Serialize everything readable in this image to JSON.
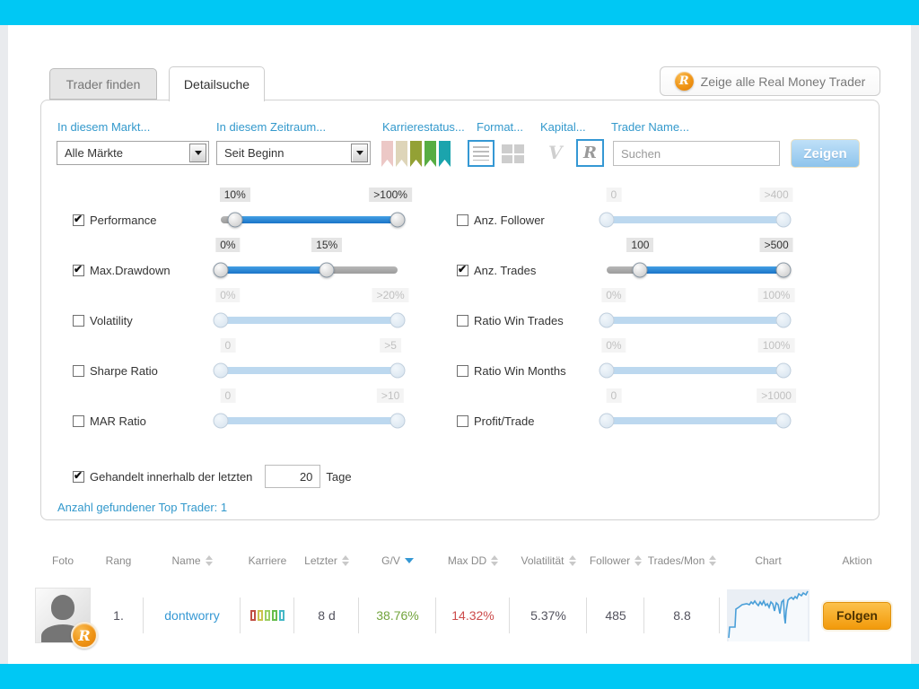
{
  "page": {
    "top_bar_color": "#00c8f4",
    "bottom_bar_color": "#00c8f4"
  },
  "tabs": {
    "trader_finden": "Trader finden",
    "detailsuche": "Detailsuche"
  },
  "show_all_button": {
    "label": "Zeige alle Real Money Trader",
    "badge_letter": "R"
  },
  "filterbar": {
    "market": {
      "label": "In diesem Markt...",
      "value": "Alle Märkte"
    },
    "period": {
      "label": "In diesem Zeitraum...",
      "value": "Seit Beginn"
    },
    "career": {
      "label": "Karrierestatus...",
      "ribbon_colors": [
        "#ecc8c6",
        "#ded5b9",
        "#93a135",
        "#57ad43",
        "#1ba4ad"
      ]
    },
    "format": {
      "label": "Format...",
      "selected": "list"
    },
    "capital": {
      "label": "Kapital...",
      "virtual_letter": "V",
      "real_letter": "R",
      "selected": "R"
    },
    "trader_name": {
      "label": "Trader Name...",
      "placeholder": "Suchen"
    },
    "submit_label": "Zeigen"
  },
  "sliders": {
    "left": [
      {
        "label": "Performance",
        "checked": true,
        "min_label": "10%",
        "max_label": ">100%",
        "low": 8,
        "high": 100
      },
      {
        "label": "Max.Drawdown",
        "checked": true,
        "min_label": "0%",
        "max_label": "15%",
        "low": 0,
        "high": 60
      },
      {
        "label": "Volatility",
        "checked": false,
        "min_label": "0%",
        "max_label": ">20%",
        "low": 0,
        "high": 100
      },
      {
        "label": "Sharpe Ratio",
        "checked": false,
        "min_label": "0",
        "max_label": ">5",
        "low": 0,
        "high": 100
      },
      {
        "label": "MAR Ratio",
        "checked": false,
        "min_label": "0",
        "max_label": ">10",
        "low": 0,
        "high": 100
      }
    ],
    "right": [
      {
        "label": "Anz. Follower",
        "checked": false,
        "min_label": "0",
        "max_label": ">400",
        "low": 0,
        "high": 100
      },
      {
        "label": "Anz. Trades",
        "checked": true,
        "min_label": "100",
        "max_label": ">500",
        "low": 19,
        "high": 100
      },
      {
        "label": "Ratio Win Trades",
        "checked": false,
        "min_label": "0%",
        "max_label": "100%",
        "low": 0,
        "high": 100
      },
      {
        "label": "Ratio Win Months",
        "checked": false,
        "min_label": "0%",
        "max_label": "100%",
        "low": 0,
        "high": 100
      },
      {
        "label": "Profit/Trade",
        "checked": false,
        "min_label": "0",
        "max_label": ">1000",
        "low": 0,
        "high": 100
      }
    ]
  },
  "traded_within": {
    "checked": true,
    "label_before": "Gehandelt innerhalb der letzten",
    "value": "20",
    "label_after": "Tage"
  },
  "result_count": "Anzahl gefundener Top Trader: 1",
  "table": {
    "headers": [
      {
        "label": "Foto",
        "sort": "none"
      },
      {
        "label": "Rang",
        "sort": "none"
      },
      {
        "label": "Name",
        "sort": "both"
      },
      {
        "label": "Karriere",
        "sort": "none"
      },
      {
        "label": "Letzter",
        "sort": "both"
      },
      {
        "label": "G/V",
        "sort": "desc"
      },
      {
        "label": "Max DD",
        "sort": "both"
      },
      {
        "label": "Volatilität",
        "sort": "both"
      },
      {
        "label": "Follower",
        "sort": "both"
      },
      {
        "label": "Trades/Mon",
        "sort": "both"
      },
      {
        "label": "Chart",
        "sort": "none"
      },
      {
        "label": "Aktion",
        "sort": "none"
      }
    ],
    "row": {
      "rank": "1.",
      "name": "dontworry",
      "career_colors": [
        "#c14f44",
        "#c9c24e",
        "#9ccf63",
        "#66bd4d",
        "#45b8c6"
      ],
      "letzter": "8 d",
      "gv": "38.76%",
      "gv_color": "#72a43c",
      "max_dd": "14.32%",
      "max_dd_color": "#cc4b4b",
      "volatilitaet": "5.37%",
      "follower": "485",
      "trades_mon": "8.8",
      "badge_letter": "R",
      "action_label": "Folgen"
    }
  }
}
